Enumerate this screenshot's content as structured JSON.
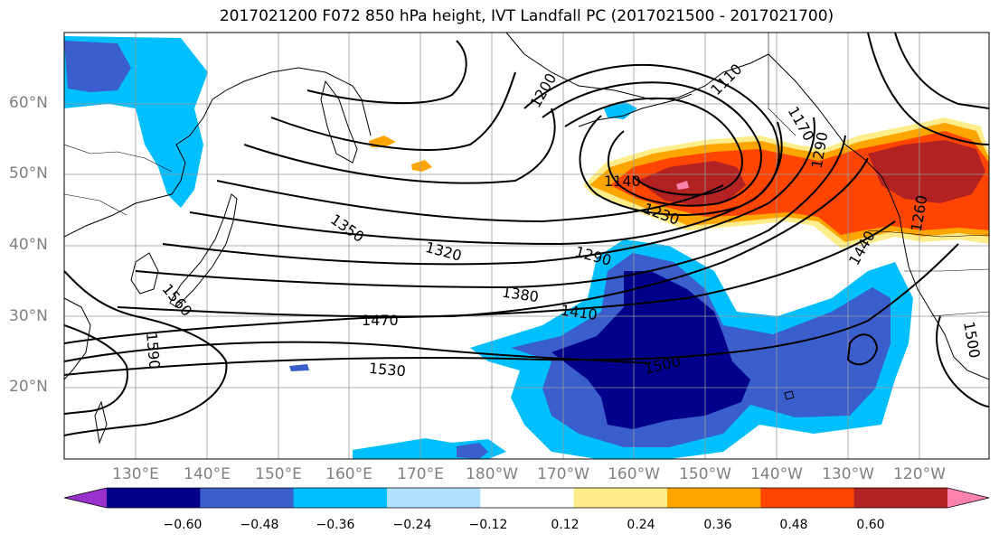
{
  "title": "2017021200 F072 850 hPa height, IVT Landfall PC (2017021500 - 2017021700)",
  "lat_labels": [
    "60°N",
    "50°N",
    "40°N",
    "30°N",
    "20°N"
  ],
  "lon_labels": [
    "130°E",
    "140°E",
    "150°E",
    "160°E",
    "170°E",
    "180°W",
    "170°W",
    "160°W",
    "150°W",
    "140°W",
    "130°W",
    "120°W"
  ],
  "contour_labels": [
    "1200",
    "1110",
    "1170",
    "1140",
    "1230",
    "1350",
    "1320",
    "1290",
    "1380",
    "1410",
    "1470",
    "1500",
    "1530",
    "1560",
    "1590",
    "1440",
    "1500",
    "1290",
    "1260"
  ],
  "colorbar": {
    "ticks": [
      "−0.60",
      "−0.48",
      "−0.36",
      "−0.24",
      "−0.12",
      "0.12",
      "0.24",
      "0.36",
      "0.48",
      "0.60"
    ],
    "colors": [
      "#9932cc",
      "#00008b",
      "#3a5fcd",
      "#00bfff",
      "#b0e2ff",
      "#ffffff",
      "#ffec8b",
      "#ffa500",
      "#ff4500",
      "#b22222",
      "#ff82ab"
    ]
  }
}
